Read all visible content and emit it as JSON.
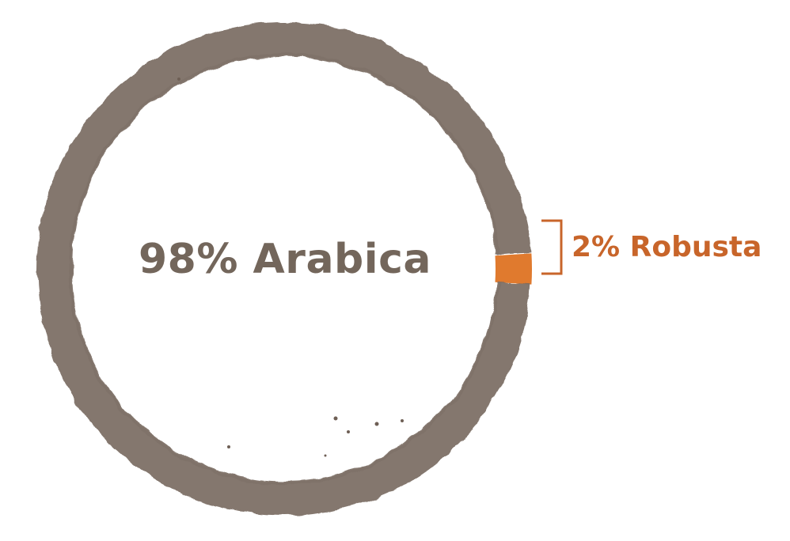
{
  "chart_data": {
    "type": "pie",
    "slices": [
      {
        "label": "98% Arabica",
        "value": 98,
        "color": "#7a6c62"
      },
      {
        "label": "2% Robusta",
        "value": 2,
        "color": "#e07a2e"
      }
    ],
    "accent_color": "#c8652a",
    "text_color": "#73665b"
  }
}
